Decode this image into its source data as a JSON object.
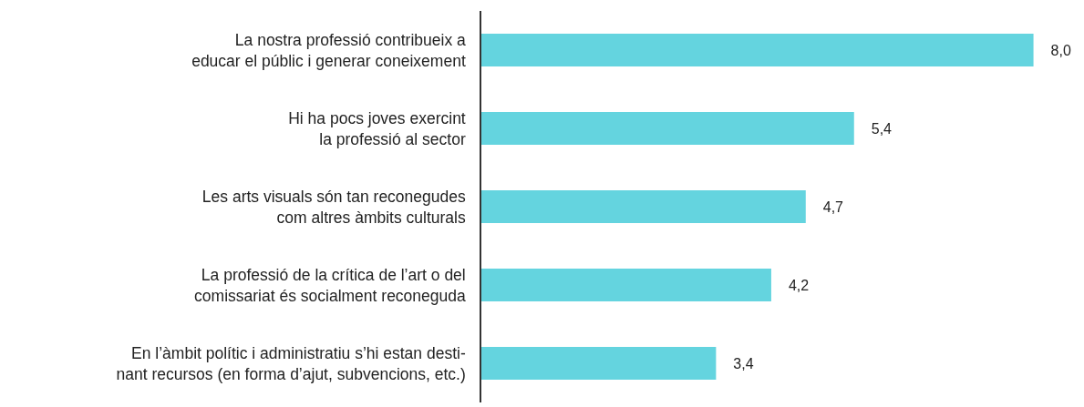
{
  "chart_data": {
    "type": "bar",
    "orientation": "horizontal",
    "categories": [
      "La nostra professió contribueix a\neducar el públic i generar coneixement",
      "Hi ha pocs joves exercint\nla professió al sector",
      "Les arts visuals són tan reconegudes\ncom altres àmbits culturals",
      "La professió de la crítica de l’art o del\ncomissariat és socialment reconeguda",
      "En l’àmbit polític i administratiu s’hi estan desti-\nnant recursos (en forma d’ajut, subvencions, etc.)"
    ],
    "values": [
      8.0,
      5.4,
      4.7,
      4.2,
      3.4
    ],
    "value_labels": [
      "8,0",
      "5,4",
      "4,7",
      "4,2",
      "3,4"
    ],
    "color": "#64d4df",
    "grid": false
  }
}
